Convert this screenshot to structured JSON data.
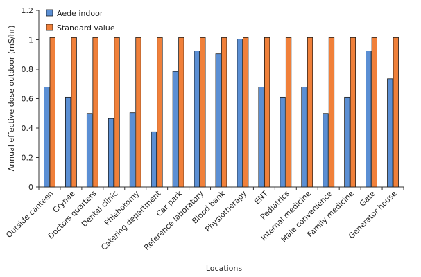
{
  "chart_data": {
    "type": "bar",
    "title": "",
    "xlabel": "Locations",
    "ylabel": "Annual effective dose outdoor (mS/hr)",
    "ylim": [
      0,
      1.2
    ],
    "yticks": [
      "0",
      "0.2",
      "0.4",
      "0.6",
      "0.8",
      "1",
      "1.2"
    ],
    "grid": false,
    "legend_position": "top-left",
    "categories": [
      "Outside canteen",
      "Crynae",
      "Doctors quarters",
      "Dental clinic",
      "Phlebotomy",
      "Catering department",
      "Car park",
      "Reference laboratory",
      "Blood bank",
      "Physiotherapy",
      "ENT",
      "Pediatrics",
      "Internal medicine",
      "Male convenience",
      "Family medicine",
      "Gate",
      "Generator house"
    ],
    "series": [
      {
        "name": "Aede indoor",
        "color": "#5b8fd4",
        "values": [
          0.68,
          0.61,
          0.5,
          0.465,
          0.505,
          0.375,
          0.785,
          0.925,
          0.905,
          1.005,
          0.68,
          0.61,
          0.68,
          0.5,
          0.61,
          0.925,
          0.735
        ]
      },
      {
        "name": "Standard value",
        "color": "#f0803a",
        "values": [
          1.015,
          1.015,
          1.015,
          1.015,
          1.015,
          1.015,
          1.015,
          1.015,
          1.015,
          1.015,
          1.015,
          1.015,
          1.015,
          1.015,
          1.015,
          1.015,
          1.015
        ]
      }
    ]
  }
}
